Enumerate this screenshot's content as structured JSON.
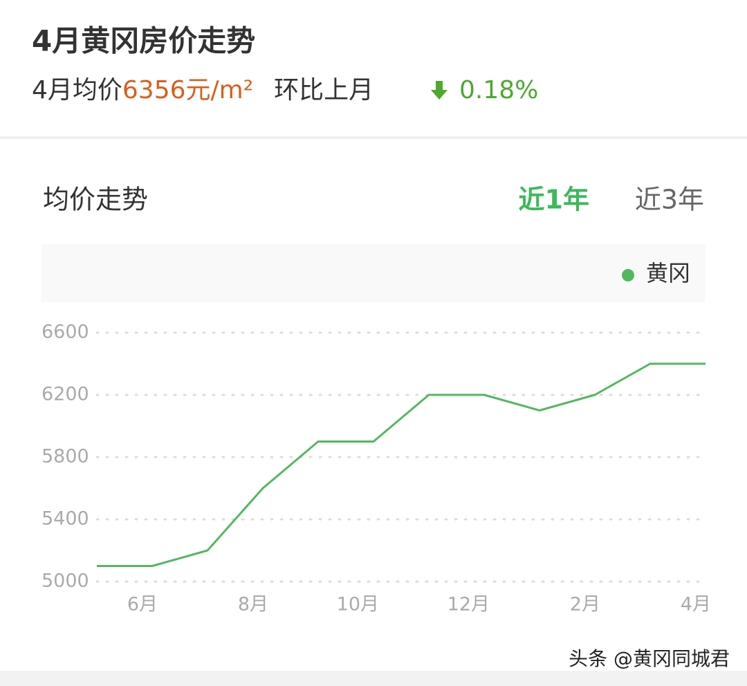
{
  "header": {
    "title": "4月黄冈房价走势",
    "avg_label": "4月均价",
    "avg_price": "6356元/m²",
    "mom_label": "环比上月",
    "mom_change": "0.18%"
  },
  "section": {
    "title": "均价走势",
    "tabs": [
      "近1年",
      "近3年"
    ]
  },
  "watermark": "头条 @黄冈同城君",
  "chart_data": {
    "type": "line",
    "categories": [
      null,
      "6月",
      null,
      "8月",
      null,
      "10月",
      null,
      "12月",
      null,
      "2月",
      null,
      "4月"
    ],
    "series": [
      {
        "name": "黄冈",
        "color": "#52b85f",
        "values": [
          5100,
          5100,
          5200,
          5600,
          5900,
          5900,
          6200,
          6200,
          6100,
          6200,
          6400,
          6400
        ]
      }
    ],
    "ylim": [
      5000,
      6600
    ],
    "yticks": [
      5000,
      5400,
      5800,
      6200,
      6600
    ],
    "grid": true
  }
}
